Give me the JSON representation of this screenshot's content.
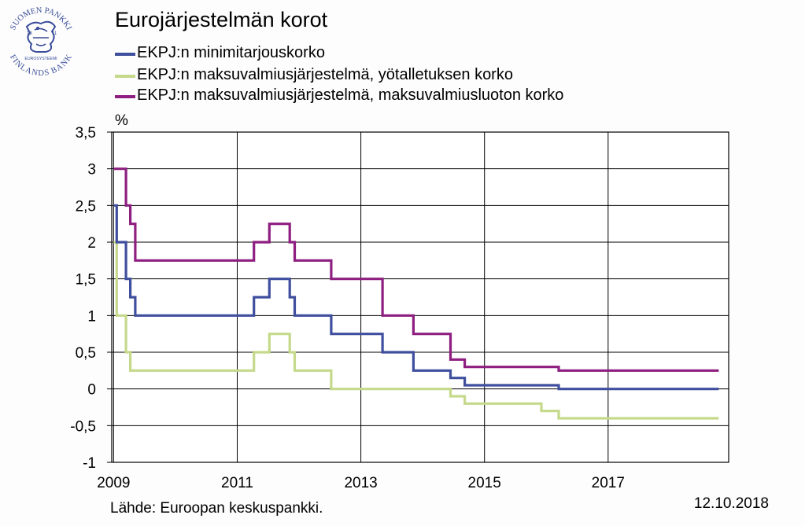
{
  "logo": {
    "top_text": "SUOMEN PANKKI",
    "bottom_text": "FINLANDS BANK",
    "inner_text": "EUROSYSTEEMI",
    "year_left": "18",
    "year_right": "11",
    "color": "#3a4d9a"
  },
  "footer": {
    "source": "Lähde: Euroopan keskuspankki.",
    "date": "12.10.2018"
  },
  "chart_data": {
    "type": "line",
    "title": "Eurojärjestelmän korot",
    "ylabel": "%",
    "xlabel": "",
    "xlim": [
      2008.97,
      2018.95
    ],
    "ylim": [
      -1,
      3.5
    ],
    "yticks": [
      -1,
      -0.5,
      0,
      0.5,
      1,
      1.5,
      2,
      2.5,
      3,
      3.5
    ],
    "ytick_labels": [
      "-1",
      "-0,5",
      "0",
      "0,5",
      "1",
      "1,5",
      "2",
      "2,5",
      "3",
      "3,5"
    ],
    "xticks": [
      2009,
      2011,
      2013,
      2015,
      2017
    ],
    "xtick_labels": [
      "2009",
      "2011",
      "2013",
      "2015",
      "2017"
    ],
    "grid": true,
    "legend_position": "top-left",
    "step": true,
    "series": [
      {
        "name": "EKPJ:n minimitarjouskorko",
        "color": "#3f4f9e",
        "x": [
          2009.0,
          2009.05,
          2009.2,
          2009.27,
          2009.35,
          2011.27,
          2011.52,
          2011.85,
          2011.93,
          2012.52,
          2013.35,
          2013.85,
          2014.45,
          2014.68,
          2016.2,
          2018.79
        ],
        "y": [
          2.5,
          2.0,
          1.5,
          1.25,
          1.0,
          1.25,
          1.5,
          1.25,
          1.0,
          0.75,
          0.5,
          0.25,
          0.15,
          0.05,
          0.0,
          0.0
        ]
      },
      {
        "name": "EKPJ:n maksuvalmiusjärjestelmä, yötalletuksen korko",
        "color": "#c5d98b",
        "x": [
          2009.0,
          2009.05,
          2009.2,
          2009.27,
          2011.27,
          2011.52,
          2011.85,
          2011.93,
          2012.52,
          2014.45,
          2014.68,
          2015.92,
          2016.2,
          2018.79
        ],
        "y": [
          2.0,
          1.0,
          0.5,
          0.25,
          0.5,
          0.75,
          0.5,
          0.25,
          0.0,
          -0.1,
          -0.2,
          -0.3,
          -0.4,
          -0.4
        ]
      },
      {
        "name": "EKPJ:n maksuvalmiusjärjestelmä, maksuvalmiusluoton korko",
        "color": "#8e1f80",
        "x": [
          2009.0,
          2009.2,
          2009.27,
          2009.35,
          2011.27,
          2011.52,
          2011.85,
          2011.93,
          2012.52,
          2013.35,
          2013.85,
          2014.45,
          2014.68,
          2016.2,
          2018.79
        ],
        "y": [
          3.0,
          2.5,
          2.25,
          1.75,
          2.0,
          2.25,
          2.0,
          1.75,
          1.5,
          1.0,
          0.75,
          0.4,
          0.3,
          0.25,
          0.25
        ]
      }
    ]
  }
}
